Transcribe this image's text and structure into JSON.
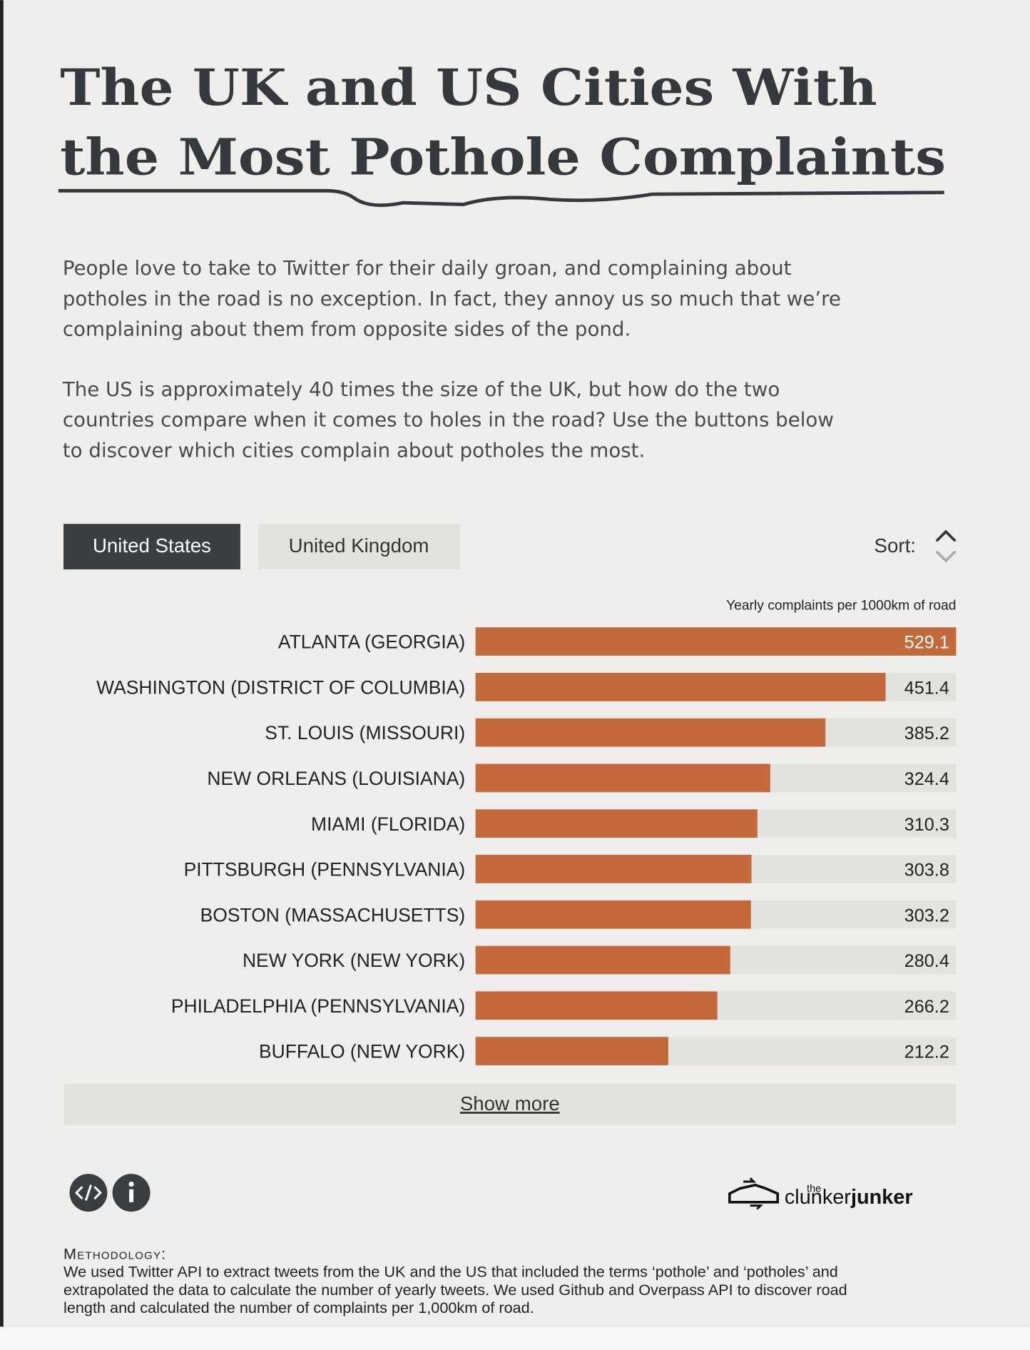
{
  "header": {
    "title_lines": [
      "The UK and US Cities With",
      "the Most Pothole Complaints"
    ]
  },
  "intro": {
    "paragraphs": [
      [
        "People love to take to Twitter for their daily groan, and complaining about",
        "potholes in the road is no exception. In fact, they annoy us so much that we’re",
        "complaining about them from opposite sides of the pond."
      ],
      [
        "The US is approximately 40 times the size of the UK, but how do the two",
        "countries compare when it comes to holes in the road? Use the buttons below",
        "to discover which cities complain about potholes the most."
      ]
    ]
  },
  "controls": {
    "tabs": [
      "United States",
      "United Kingdom"
    ],
    "sort": "Sort:"
  },
  "chart_data": {
    "type": "bar",
    "orientation": "horizontal",
    "x_label": "Yearly complaints per 1000km of road",
    "categories": [
      "ATLANTA (GEORGIA)",
      "WASHINGTON (DISTRICT OF COLUMBIA)",
      "ST. LOUIS (MISSOURI)",
      "NEW ORLEANS (LOUISIANA)",
      "MIAMI (FLORIDA)",
      "PITTSBURGH (PENNSYLVANIA)",
      "BOSTON (MASSACHUSETTS)",
      "NEW YORK (NEW YORK)",
      "PHILADELPHIA (PENNSYLVANIA)",
      "BUFFALO (NEW YORK)"
    ],
    "values": [
      529.1,
      451.4,
      385.2,
      324.4,
      310.3,
      303.8,
      303.2,
      280.4,
      266.2,
      212.2
    ],
    "xlim": [
      0,
      529.1
    ],
    "color": "#c4693a"
  },
  "show_more": "Show more",
  "logo": {
    "small": "the",
    "light": "clunker",
    "bold": "junker"
  },
  "methodology": {
    "heading": "Methodology:",
    "lines": [
      "We used Twitter API to extract tweets from the UK and the US that included the terms ‘pothole’ and ‘potholes’ and",
      "extrapolated the data to calculate the number of yearly tweets. We used Github and Overpass API to discover road",
      "length and calculated the number of complaints per 1,000km of road."
    ]
  }
}
